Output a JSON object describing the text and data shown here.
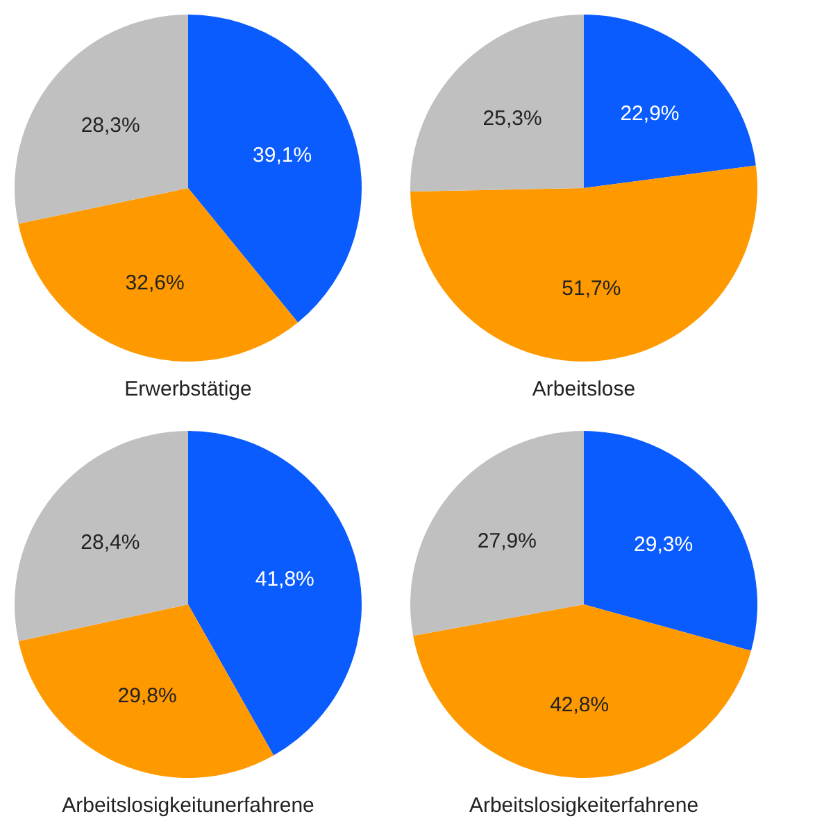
{
  "chart_data": [
    {
      "type": "pie",
      "title": "Erwerbstätige",
      "categories": [
        null,
        null,
        null
      ],
      "values": [
        39.1,
        32.6,
        28.3
      ],
      "colors": [
        "#0a5cff",
        "#ff9900",
        "#c0c0c0"
      ],
      "value_labels": [
        "39,1%",
        "32,6%",
        "28,3%"
      ],
      "legend": false
    },
    {
      "type": "pie",
      "title": "Arbeitslose",
      "categories": [
        null,
        null,
        null
      ],
      "values": [
        22.9,
        51.7,
        25.3
      ],
      "colors": [
        "#0a5cff",
        "#ff9900",
        "#c0c0c0"
      ],
      "value_labels": [
        "22,9%",
        "51,7%",
        "25,3%"
      ],
      "legend": false
    },
    {
      "type": "pie",
      "title": "Arbeitslosigkeitunerfahrene",
      "categories": [
        null,
        null,
        null
      ],
      "values": [
        41.8,
        29.8,
        28.4
      ],
      "colors": [
        "#0a5cff",
        "#ff9900",
        "#c0c0c0"
      ],
      "value_labels": [
        "41,8%",
        "29,8%",
        "28,4%"
      ],
      "legend": false
    },
    {
      "type": "pie",
      "title": "Arbeitslosigkeiterfahrene",
      "categories": [
        null,
        null,
        null
      ],
      "values": [
        29.3,
        42.8,
        27.9
      ],
      "colors": [
        "#0a5cff",
        "#ff9900",
        "#c0c0c0"
      ],
      "value_labels": [
        "29,3%",
        "42,8%",
        "27,9%"
      ],
      "legend": false
    }
  ]
}
